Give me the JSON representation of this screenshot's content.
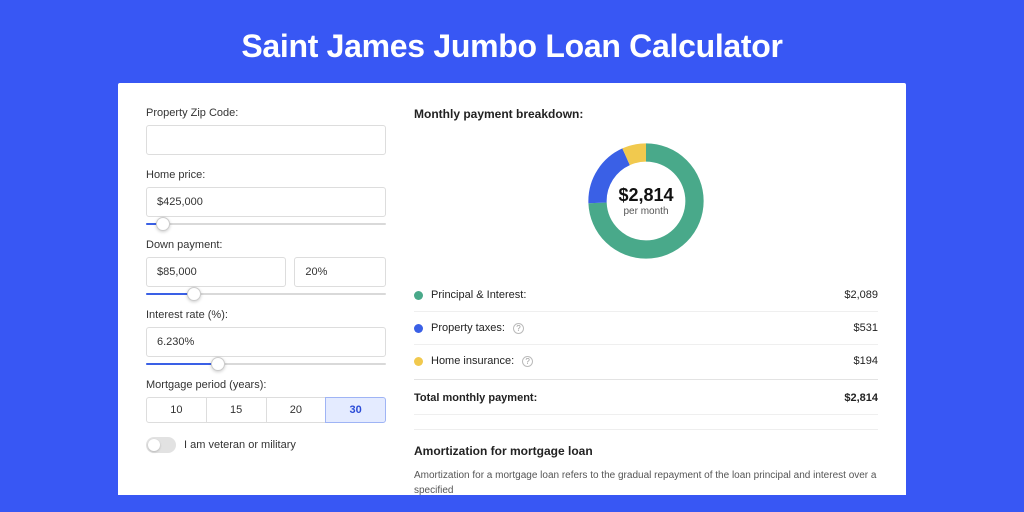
{
  "page": {
    "title": "Saint James Jumbo Loan Calculator",
    "background_color": "#3857f4",
    "card_background": "#ffffff"
  },
  "form": {
    "zip": {
      "label": "Property Zip Code:",
      "value": ""
    },
    "home_price": {
      "label": "Home price:",
      "value": "$425,000",
      "slider_pct": 7
    },
    "down_payment": {
      "label": "Down payment:",
      "amount": "$85,000",
      "percent": "20%",
      "slider_pct": 20
    },
    "interest_rate": {
      "label": "Interest rate (%):",
      "value": "6.230%",
      "slider_pct": 30
    },
    "mortgage_period": {
      "label": "Mortgage period (years):",
      "options": [
        "10",
        "15",
        "20",
        "30"
      ],
      "selected": "30"
    },
    "veteran": {
      "label": "I am veteran or military",
      "checked": false
    }
  },
  "breakdown": {
    "title": "Monthly payment breakdown:",
    "donut": {
      "total_label": "$2,814",
      "sub_label": "per month",
      "stroke_width": 16,
      "slices": [
        {
          "key": "principal_interest",
          "color": "#49a98a",
          "value": 2089
        },
        {
          "key": "property_taxes",
          "color": "#3a60e6",
          "value": 531
        },
        {
          "key": "home_insurance",
          "color": "#f1c94e",
          "value": 194
        }
      ]
    },
    "items": [
      {
        "label": "Principal & Interest:",
        "value": "$2,089",
        "color": "#49a98a",
        "info": false
      },
      {
        "label": "Property taxes:",
        "value": "$531",
        "color": "#3a60e6",
        "info": true
      },
      {
        "label": "Home insurance:",
        "value": "$194",
        "color": "#f1c94e",
        "info": true
      }
    ],
    "total": {
      "label": "Total monthly payment:",
      "value": "$2,814"
    }
  },
  "amortization": {
    "title": "Amortization for mortgage loan",
    "text": "Amortization for a mortgage loan refers to the gradual repayment of the loan principal and interest over a specified"
  }
}
